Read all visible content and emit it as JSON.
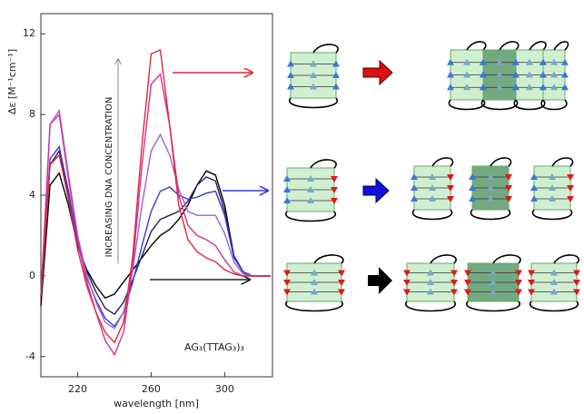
{
  "chart_data": {
    "type": "line",
    "y_label": "Δε [M⁻¹cm⁻¹]",
    "x_label": "wavelength [nm]",
    "annotations": [
      "INCREASING DNA CONCENTRATION",
      "AG₃(TTAG₃)₃"
    ],
    "x": [
      200,
      205,
      210,
      215,
      220,
      225,
      230,
      235,
      240,
      245,
      250,
      255,
      260,
      265,
      270,
      275,
      280,
      285,
      290,
      295,
      300,
      305,
      310,
      315,
      320,
      325
    ],
    "series": [
      {
        "color": "#000000",
        "values": [
          -1.5,
          4.5,
          5.1,
          3.5,
          1.5,
          0.3,
          -0.5,
          -1.1,
          -0.9,
          -0.3,
          0.3,
          0.9,
          1.5,
          2.0,
          2.3,
          2.8,
          3.5,
          4.5,
          5.2,
          5.0,
          3.5,
          1.0,
          0.2,
          0,
          0,
          0
        ]
      },
      {
        "color": "#22226a",
        "values": [
          -1,
          5.5,
          6.2,
          4,
          1.7,
          0.2,
          -0.8,
          -1.6,
          -1.9,
          -1.3,
          -0.2,
          1,
          2.2,
          2.8,
          3,
          3.2,
          3.7,
          4.5,
          4.9,
          4.7,
          3.2,
          1,
          0.2,
          0,
          0,
          0
        ]
      },
      {
        "color": "#3a3ad0",
        "values": [
          -1,
          5.8,
          6.4,
          4.2,
          1.6,
          -0.1,
          -1.2,
          -2.1,
          -2.5,
          -1.8,
          -0.3,
          1.5,
          3.2,
          4.2,
          4.4,
          4.0,
          3.8,
          3.9,
          4.1,
          4.2,
          3.0,
          0.9,
          0.2,
          0,
          0,
          0
        ]
      },
      {
        "color": "#a060d8",
        "values": [
          -1,
          7.5,
          8.2,
          5,
          2,
          0,
          -1.3,
          -2.3,
          -2.6,
          -1.8,
          0.3,
          3.5,
          6.2,
          7.0,
          6.0,
          4.3,
          3.2,
          3.0,
          3.0,
          3.0,
          2.1,
          0.7,
          0.1,
          0,
          0,
          0
        ]
      },
      {
        "color": "#d03098",
        "values": [
          -1,
          7.5,
          8.0,
          4.8,
          1.8,
          -0.3,
          -1.8,
          -3.2,
          -3.9,
          -2.8,
          0.5,
          5.5,
          9.5,
          10.0,
          7.5,
          4.0,
          2.5,
          2.0,
          1.8,
          1.5,
          0.8,
          0.2,
          0,
          0,
          0,
          0
        ]
      },
      {
        "color": "#e02a36",
        "values": [
          -1,
          5.5,
          6.0,
          3.8,
          1.3,
          -0.5,
          -1.8,
          -2.8,
          -3.3,
          -2.3,
          1,
          6.5,
          11.0,
          11.2,
          7.5,
          3.5,
          1.8,
          1.2,
          0.9,
          0.7,
          0.3,
          0.1,
          0,
          0,
          0,
          0
        ]
      }
    ],
    "xlim": [
      200,
      326
    ],
    "ylim": [
      -5,
      13
    ],
    "xticks": [
      220,
      260,
      300
    ],
    "yticks": [
      -4,
      0,
      4,
      8,
      12
    ]
  }
}
